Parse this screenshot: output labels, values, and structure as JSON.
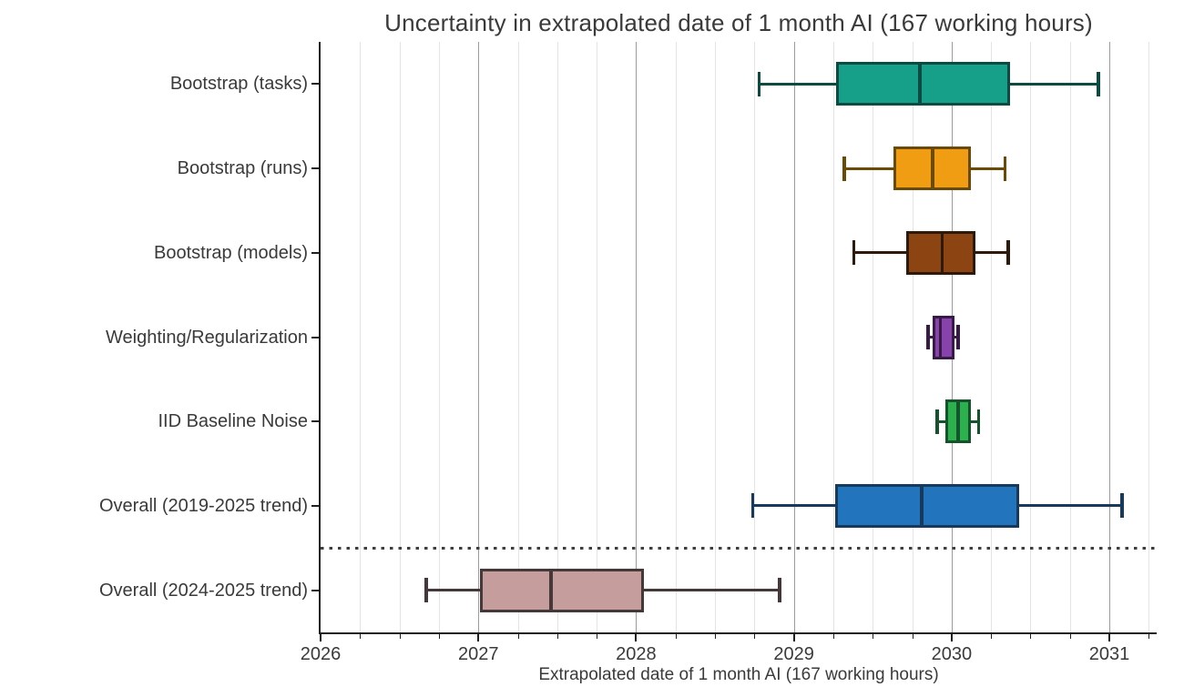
{
  "chart_data": {
    "type": "boxplot",
    "orientation": "horizontal",
    "title": "Uncertainty in extrapolated date of 1 month AI (167 working hours)",
    "xlabel": "Extrapolated date of 1 month AI (167 working hours)",
    "xlim": [
      2026,
      2031.3
    ],
    "x_major_ticks": [
      2026,
      2027,
      2028,
      2029,
      2030,
      2031
    ],
    "x_tick_labels": [
      "2026",
      "2027",
      "2028",
      "2029",
      "2030",
      "2031"
    ],
    "x_minor_step": 0.25,
    "grid": {
      "vertical_minor": true,
      "vertical_major": true,
      "minor_color": "#e4e4e4",
      "major_color": "#9c9c9c"
    },
    "categories": [
      "Bootstrap (tasks)",
      "Bootstrap (runs)",
      "Bootstrap (models)",
      "Weighting/Regularization",
      "IID Baseline Noise",
      "Overall (2019-2025 trend)",
      "Overall (2024-2025 trend)"
    ],
    "series": [
      {
        "label": "Bootstrap (tasks)",
        "whisker_low": 2028.78,
        "q1": 2029.27,
        "median": 2029.8,
        "q3": 2030.37,
        "whisker_high": 2030.93,
        "fill": "#17A089",
        "stroke": "#0D4A42"
      },
      {
        "label": "Bootstrap (runs)",
        "whisker_low": 2029.32,
        "q1": 2029.63,
        "median": 2029.88,
        "q3": 2030.12,
        "whisker_high": 2030.34,
        "fill": "#F19D13",
        "stroke": "#6B4A05"
      },
      {
        "label": "Bootstrap (models)",
        "whisker_low": 2029.38,
        "q1": 2029.71,
        "median": 2029.94,
        "q3": 2030.15,
        "whisker_high": 2030.36,
        "fill": "#8C4512",
        "stroke": "#2E1A0A"
      },
      {
        "label": "Weighting/Regularization",
        "whisker_low": 2029.85,
        "q1": 2029.88,
        "median": 2029.93,
        "q3": 2030.02,
        "whisker_high": 2030.04,
        "fill": "#8742AB",
        "stroke": "#371B45"
      },
      {
        "label": "IID Baseline Noise",
        "whisker_low": 2029.91,
        "q1": 2029.96,
        "median": 2030.04,
        "q3": 2030.12,
        "whisker_high": 2030.17,
        "fill": "#2DB04E",
        "stroke": "#14532B"
      },
      {
        "label": "Overall (2019-2025 trend)",
        "whisker_low": 2028.74,
        "q1": 2029.26,
        "median": 2029.81,
        "q3": 2030.43,
        "whisker_high": 2031.08,
        "fill": "#2274BC",
        "stroke": "#173A5C"
      },
      {
        "label": "Overall (2024-2025 trend)",
        "whisker_low": 2026.67,
        "q1": 2027.01,
        "median": 2027.46,
        "q3": 2028.05,
        "whisker_high": 2028.91,
        "fill": "#C59D9C",
        "stroke": "#443838"
      }
    ],
    "separator": {
      "between": [
        "Overall (2019-2025 trend)",
        "Overall (2024-2025 trend)"
      ],
      "style": "dotted",
      "color": "#3f3f3f"
    }
  }
}
